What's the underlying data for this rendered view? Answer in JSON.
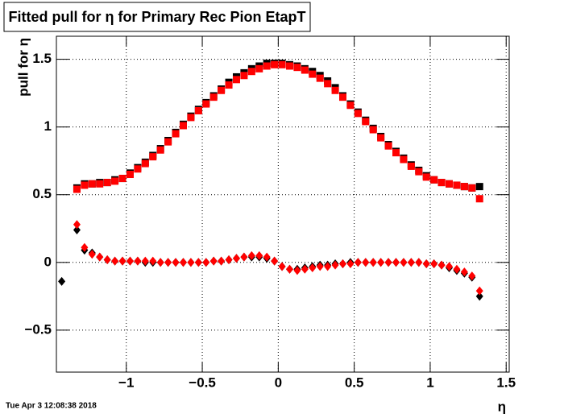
{
  "chart_data": {
    "type": "scatter",
    "title": "Fitted pull for  η for Primary Rec Pion EtapT",
    "x_label": "η",
    "y_label": "pull for  η",
    "timestamp": "Tue Apr  3 12:08:38 2018",
    "xlim": [
      -1.46,
      1.52
    ],
    "ylim": [
      -0.81,
      1.67
    ],
    "grid": true,
    "xticks": [
      {
        "value": -1,
        "label": "−1"
      },
      {
        "value": -0.5,
        "label": "−0.5"
      },
      0,
      0.5,
      1,
      1.5
    ],
    "yticks": [
      {
        "value": -0.5,
        "label": "−0.5"
      },
      0,
      0.5,
      1,
      1.5
    ],
    "x": [
      -1.425,
      -1.325,
      -1.275,
      -1.225,
      -1.175,
      -1.125,
      -1.075,
      -1.025,
      -0.975,
      -0.925,
      -0.875,
      -0.825,
      -0.775,
      -0.725,
      -0.675,
      -0.625,
      -0.575,
      -0.525,
      -0.475,
      -0.425,
      -0.375,
      -0.325,
      -0.275,
      -0.225,
      -0.175,
      -0.125,
      -0.075,
      -0.025,
      0.025,
      0.075,
      0.125,
      0.175,
      0.225,
      0.275,
      0.325,
      0.375,
      0.425,
      0.475,
      0.525,
      0.575,
      0.625,
      0.675,
      0.725,
      0.775,
      0.825,
      0.875,
      0.925,
      0.975,
      1.025,
      1.075,
      1.125,
      1.175,
      1.225,
      1.275,
      1.325
    ],
    "series": [
      {
        "color": "#000000",
        "marker": "square",
        "values": [
          null,
          0.55,
          0.58,
          0.58,
          0.59,
          0.59,
          0.61,
          0.62,
          0.66,
          0.7,
          0.74,
          0.79,
          0.84,
          0.9,
          0.96,
          1.02,
          1.08,
          1.13,
          1.18,
          1.23,
          1.28,
          1.33,
          1.37,
          1.4,
          1.43,
          1.45,
          1.47,
          1.47,
          1.47,
          1.46,
          1.45,
          1.43,
          1.41,
          1.38,
          1.34,
          1.29,
          1.23,
          1.17,
          1.11,
          1.05,
          0.99,
          0.93,
          0.87,
          0.82,
          0.77,
          0.72,
          0.68,
          0.64,
          0.61,
          0.59,
          0.58,
          0.57,
          0.56,
          0.55,
          0.56
        ]
      },
      {
        "color": "#ff0000",
        "marker": "square",
        "values": [
          null,
          0.54,
          0.57,
          0.58,
          0.58,
          0.59,
          0.6,
          0.62,
          0.65,
          0.69,
          0.73,
          0.78,
          0.83,
          0.89,
          0.95,
          1.01,
          1.07,
          1.12,
          1.17,
          1.22,
          1.27,
          1.31,
          1.35,
          1.38,
          1.41,
          1.43,
          1.45,
          1.46,
          1.46,
          1.45,
          1.44,
          1.42,
          1.39,
          1.36,
          1.32,
          1.27,
          1.22,
          1.16,
          1.1,
          1.04,
          0.98,
          0.92,
          0.86,
          0.81,
          0.76,
          0.71,
          0.67,
          0.63,
          0.61,
          0.59,
          0.58,
          0.57,
          0.56,
          0.55,
          0.47
        ]
      },
      {
        "color": "#000000",
        "marker": "diamond",
        "values": [
          -0.14,
          0.24,
          0.09,
          0.07,
          0.04,
          0.02,
          0.01,
          0.01,
          0.01,
          0.01,
          0,
          0,
          0,
          0,
          0,
          0,
          0,
          0,
          0,
          0.01,
          0.01,
          0.02,
          0.03,
          0.04,
          0.04,
          0.04,
          0.03,
          0.01,
          -0.03,
          -0.05,
          -0.05,
          -0.04,
          -0.03,
          -0.02,
          -0.02,
          -0.01,
          -0.01,
          0,
          0,
          0,
          0,
          0,
          0,
          0,
          0,
          0,
          0,
          -0.01,
          -0.01,
          -0.02,
          -0.04,
          -0.06,
          -0.08,
          -0.11,
          -0.25
        ]
      },
      {
        "color": "#ff0000",
        "marker": "diamond",
        "values": [
          null,
          0.28,
          0.11,
          0.06,
          0.04,
          0.02,
          0.01,
          0.01,
          0.01,
          0.01,
          0.01,
          0.01,
          0,
          0,
          0,
          0,
          0,
          0,
          0,
          0.01,
          0.01,
          0.02,
          0.03,
          0.04,
          0.05,
          0.05,
          0.04,
          0.01,
          -0.03,
          -0.05,
          -0.06,
          -0.05,
          -0.04,
          -0.03,
          -0.03,
          -0.02,
          -0.01,
          -0.01,
          0,
          0,
          0,
          0,
          0,
          0,
          0,
          0,
          0,
          -0.01,
          -0.01,
          -0.02,
          -0.03,
          -0.05,
          -0.07,
          -0.1,
          -0.21
        ]
      }
    ]
  }
}
